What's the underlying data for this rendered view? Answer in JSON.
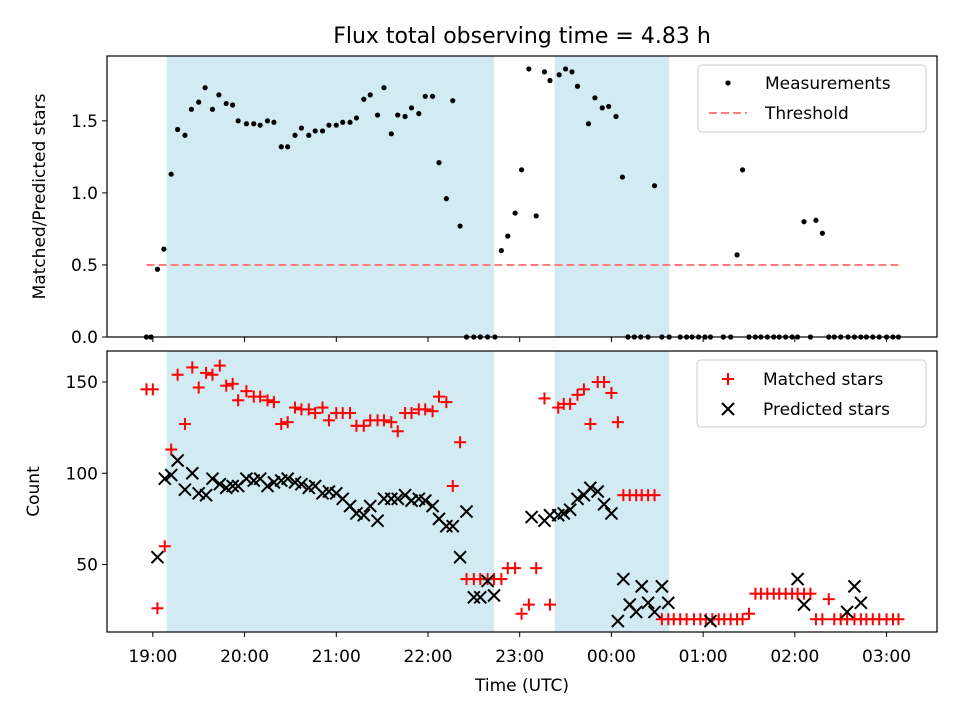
{
  "chart_data": {
    "type": "scatter",
    "title": "Flux total observing time = 4.83 h",
    "x_axis": {
      "label": "Time (UTC)",
      "range_hours": [
        18.5,
        27.55
      ],
      "tick_hours": [
        19,
        20,
        21,
        22,
        23,
        24,
        25,
        26,
        27
      ],
      "tick_labels": [
        "19:00",
        "20:00",
        "21:00",
        "22:00",
        "23:00",
        "00:00",
        "01:00",
        "02:00",
        "03:00"
      ]
    },
    "observing_windows_hours": [
      [
        19.15,
        22.72
      ],
      [
        23.38,
        24.63
      ]
    ],
    "colors": {
      "window": "#add8e6",
      "measurements": "#000000",
      "threshold": "#ff7f7f",
      "matched": "#ff0000",
      "predicted": "#000000"
    },
    "panels": [
      {
        "ylabel": "Matched/Predicted stars",
        "ylim": [
          0,
          1.95
        ],
        "yticks": [
          0,
          0.5,
          1.0,
          1.5
        ],
        "ytick_labels": [
          "0.0",
          "0.5",
          "1.0",
          "1.5"
        ],
        "legend_position": "upper right",
        "threshold": {
          "name": "Threshold",
          "value": 0.5,
          "x_range": [
            18.93,
            27.15
          ]
        },
        "series": [
          {
            "name": "Measurements",
            "marker": "dot",
            "x": [
              18.93,
              18.98,
              19.05,
              19.12,
              19.2,
              19.27,
              19.35,
              19.42,
              19.5,
              19.57,
              19.65,
              19.72,
              19.8,
              19.87,
              19.93,
              20.02,
              20.1,
              20.17,
              20.25,
              20.32,
              20.4,
              20.47,
              20.55,
              20.62,
              20.7,
              20.77,
              20.85,
              20.92,
              21.0,
              21.07,
              21.15,
              21.22,
              21.3,
              21.37,
              21.45,
              21.52,
              21.6,
              21.67,
              21.75,
              21.82,
              21.9,
              21.97,
              22.05,
              22.12,
              22.2,
              22.27,
              22.35,
              22.42,
              22.5,
              22.57,
              22.65,
              22.73,
              22.8,
              22.87,
              22.95,
              23.02,
              23.1,
              23.18,
              23.27,
              23.33,
              23.43,
              23.5,
              23.57,
              23.63,
              23.75,
              23.82,
              23.9,
              23.97,
              24.05,
              24.12,
              24.18,
              24.25,
              24.32,
              24.4,
              24.47,
              24.55,
              24.63,
              24.75,
              24.82,
              24.88,
              24.95,
              25.02,
              25.08,
              25.22,
              25.3,
              25.37,
              25.43,
              25.5,
              25.57,
              25.63,
              25.7,
              25.77,
              25.83,
              25.9,
              25.97,
              26.03,
              26.1,
              26.17,
              26.23,
              26.3,
              26.37,
              26.43,
              26.5,
              26.58,
              26.65,
              26.72,
              26.78,
              26.85,
              26.92,
              27.0,
              27.07,
              27.13
            ],
            "y": [
              0.0,
              0.0,
              0.47,
              0.61,
              1.13,
              1.44,
              1.4,
              1.58,
              1.63,
              1.73,
              1.58,
              1.68,
              1.62,
              1.61,
              1.5,
              1.48,
              1.48,
              1.47,
              1.5,
              1.49,
              1.32,
              1.32,
              1.4,
              1.45,
              1.4,
              1.43,
              1.43,
              1.47,
              1.47,
              1.49,
              1.49,
              1.52,
              1.65,
              1.68,
              1.54,
              1.73,
              1.41,
              1.54,
              1.53,
              1.59,
              1.55,
              1.67,
              1.67,
              1.21,
              0.96,
              1.64,
              0.77,
              0.0,
              0.0,
              0.0,
              0.0,
              0.0,
              0.6,
              0.7,
              0.86,
              1.16,
              1.86,
              0.84,
              1.84,
              1.78,
              1.82,
              1.86,
              1.84,
              1.74,
              1.48,
              1.66,
              1.59,
              1.6,
              1.53,
              1.11,
              0.0,
              0.0,
              0.0,
              0.0,
              1.05,
              0.0,
              0.0,
              0.0,
              0.0,
              0.0,
              0.0,
              0.0,
              0.0,
              0.0,
              0.0,
              0.57,
              1.16,
              0.0,
              0.0,
              0.0,
              0.0,
              0.0,
              0.0,
              0.0,
              0.0,
              0.0,
              0.8,
              0.0,
              0.81,
              0.72,
              0.0,
              0.0,
              0.0,
              0.0,
              0.0,
              0.0,
              0.0,
              0.0,
              0.0,
              0.0,
              0.0,
              0.0
            ]
          }
        ]
      },
      {
        "ylabel": "Count",
        "ylim": [
          13,
          167
        ],
        "yticks": [
          50,
          100,
          150
        ],
        "ytick_labels": [
          "50",
          "100",
          "150"
        ],
        "legend_position": "upper right",
        "series": [
          {
            "name": "Matched stars",
            "marker": "plus",
            "x": [
              18.93,
              19.0,
              19.05,
              19.13,
              19.2,
              19.27,
              19.35,
              19.43,
              19.5,
              19.58,
              19.65,
              19.73,
              19.8,
              19.87,
              19.93,
              20.02,
              20.1,
              20.17,
              20.25,
              20.32,
              20.4,
              20.47,
              20.55,
              20.62,
              20.7,
              20.77,
              20.85,
              20.92,
              21.0,
              21.07,
              21.15,
              21.22,
              21.3,
              21.37,
              21.45,
              21.52,
              21.6,
              21.67,
              21.75,
              21.82,
              21.9,
              21.97,
              22.05,
              22.12,
              22.2,
              22.27,
              22.35,
              22.42,
              22.5,
              22.57,
              22.65,
              22.72,
              22.8,
              22.87,
              22.95,
              23.02,
              23.1,
              23.18,
              23.27,
              23.33,
              23.42,
              23.48,
              23.55,
              23.63,
              23.7,
              23.77,
              23.85,
              23.92,
              24.0,
              24.07,
              24.13,
              24.2,
              24.27,
              24.33,
              24.4,
              24.47,
              24.55,
              24.62,
              24.68,
              24.75,
              24.82,
              24.9,
              24.97,
              25.03,
              25.1,
              25.17,
              25.23,
              25.3,
              25.37,
              25.43,
              25.5,
              25.57,
              25.63,
              25.7,
              25.77,
              25.83,
              25.9,
              25.97,
              26.03,
              26.1,
              26.17,
              26.23,
              26.3,
              26.37,
              26.43,
              26.5,
              26.57,
              26.65,
              26.72,
              26.78,
              26.85,
              26.92,
              27.0,
              27.07,
              27.13
            ],
            "y": [
              146,
              146,
              26,
              60,
              113,
              154,
              127,
              158,
              147,
              155,
              154,
              159,
              148,
              149,
              140,
              145,
              142,
              142,
              140,
              139,
              127,
              128,
              136,
              135,
              135,
              133,
              136,
              129,
              133,
              133,
              133,
              126,
              126,
              129,
              129,
              129,
              128,
              123,
              133,
              133,
              135,
              135,
              134,
              142,
              139,
              93,
              117,
              42,
              42,
              42,
              42,
              42,
              42,
              48,
              48,
              23,
              28,
              48,
              141,
              28,
              136,
              138,
              138,
              143,
              146,
              127,
              150,
              150,
              144,
              128,
              88,
              88,
              88,
              88,
              88,
              88,
              20,
              20,
              20,
              20,
              20,
              20,
              20,
              20,
              20,
              20,
              20,
              20,
              20,
              20,
              23,
              34,
              34,
              34,
              34,
              34,
              34,
              34,
              34,
              34,
              34,
              20,
              20,
              31,
              20,
              20,
              20,
              20,
              20,
              20,
              20,
              20,
              20,
              20,
              20
            ]
          },
          {
            "name": "Predicted stars",
            "marker": "x",
            "x": [
              19.05,
              19.13,
              19.2,
              19.27,
              19.35,
              19.43,
              19.5,
              19.58,
              19.65,
              19.73,
              19.8,
              19.87,
              19.93,
              20.02,
              20.1,
              20.17,
              20.25,
              20.32,
              20.4,
              20.47,
              20.55,
              20.62,
              20.7,
              20.77,
              20.85,
              20.92,
              21.0,
              21.07,
              21.15,
              21.22,
              21.3,
              21.37,
              21.45,
              21.52,
              21.6,
              21.67,
              21.75,
              21.82,
              21.9,
              21.97,
              22.05,
              22.12,
              22.2,
              22.27,
              22.35,
              22.42,
              22.5,
              22.57,
              22.65,
              22.72,
              23.13,
              23.27,
              23.33,
              23.42,
              23.48,
              23.55,
              23.63,
              23.7,
              23.77,
              23.85,
              23.92,
              24.0,
              24.07,
              24.13,
              24.2,
              24.27,
              24.33,
              24.4,
              24.47,
              24.55,
              24.62,
              25.08,
              26.03,
              26.1,
              26.57,
              26.65,
              26.72
            ],
            "y": [
              54,
              97,
              99,
              107,
              91,
              100,
              89,
              88,
              97,
              94,
              92,
              93,
              93,
              97,
              96,
              97,
              93,
              95,
              96,
              97,
              95,
              94,
              92,
              93,
              89,
              90,
              89,
              86,
              82,
              78,
              77,
              82,
              74,
              86,
              86,
              86,
              88,
              85,
              86,
              85,
              82,
              75,
              71,
              71,
              54,
              79,
              32,
              32,
              41,
              33,
              76,
              74,
              77,
              77,
              78,
              80,
              86,
              88,
              92,
              90,
              83,
              78,
              19,
              42,
              28,
              24,
              38,
              29,
              24,
              38,
              29,
              19,
              42,
              28,
              24,
              38,
              29
            ]
          }
        ]
      }
    ]
  }
}
